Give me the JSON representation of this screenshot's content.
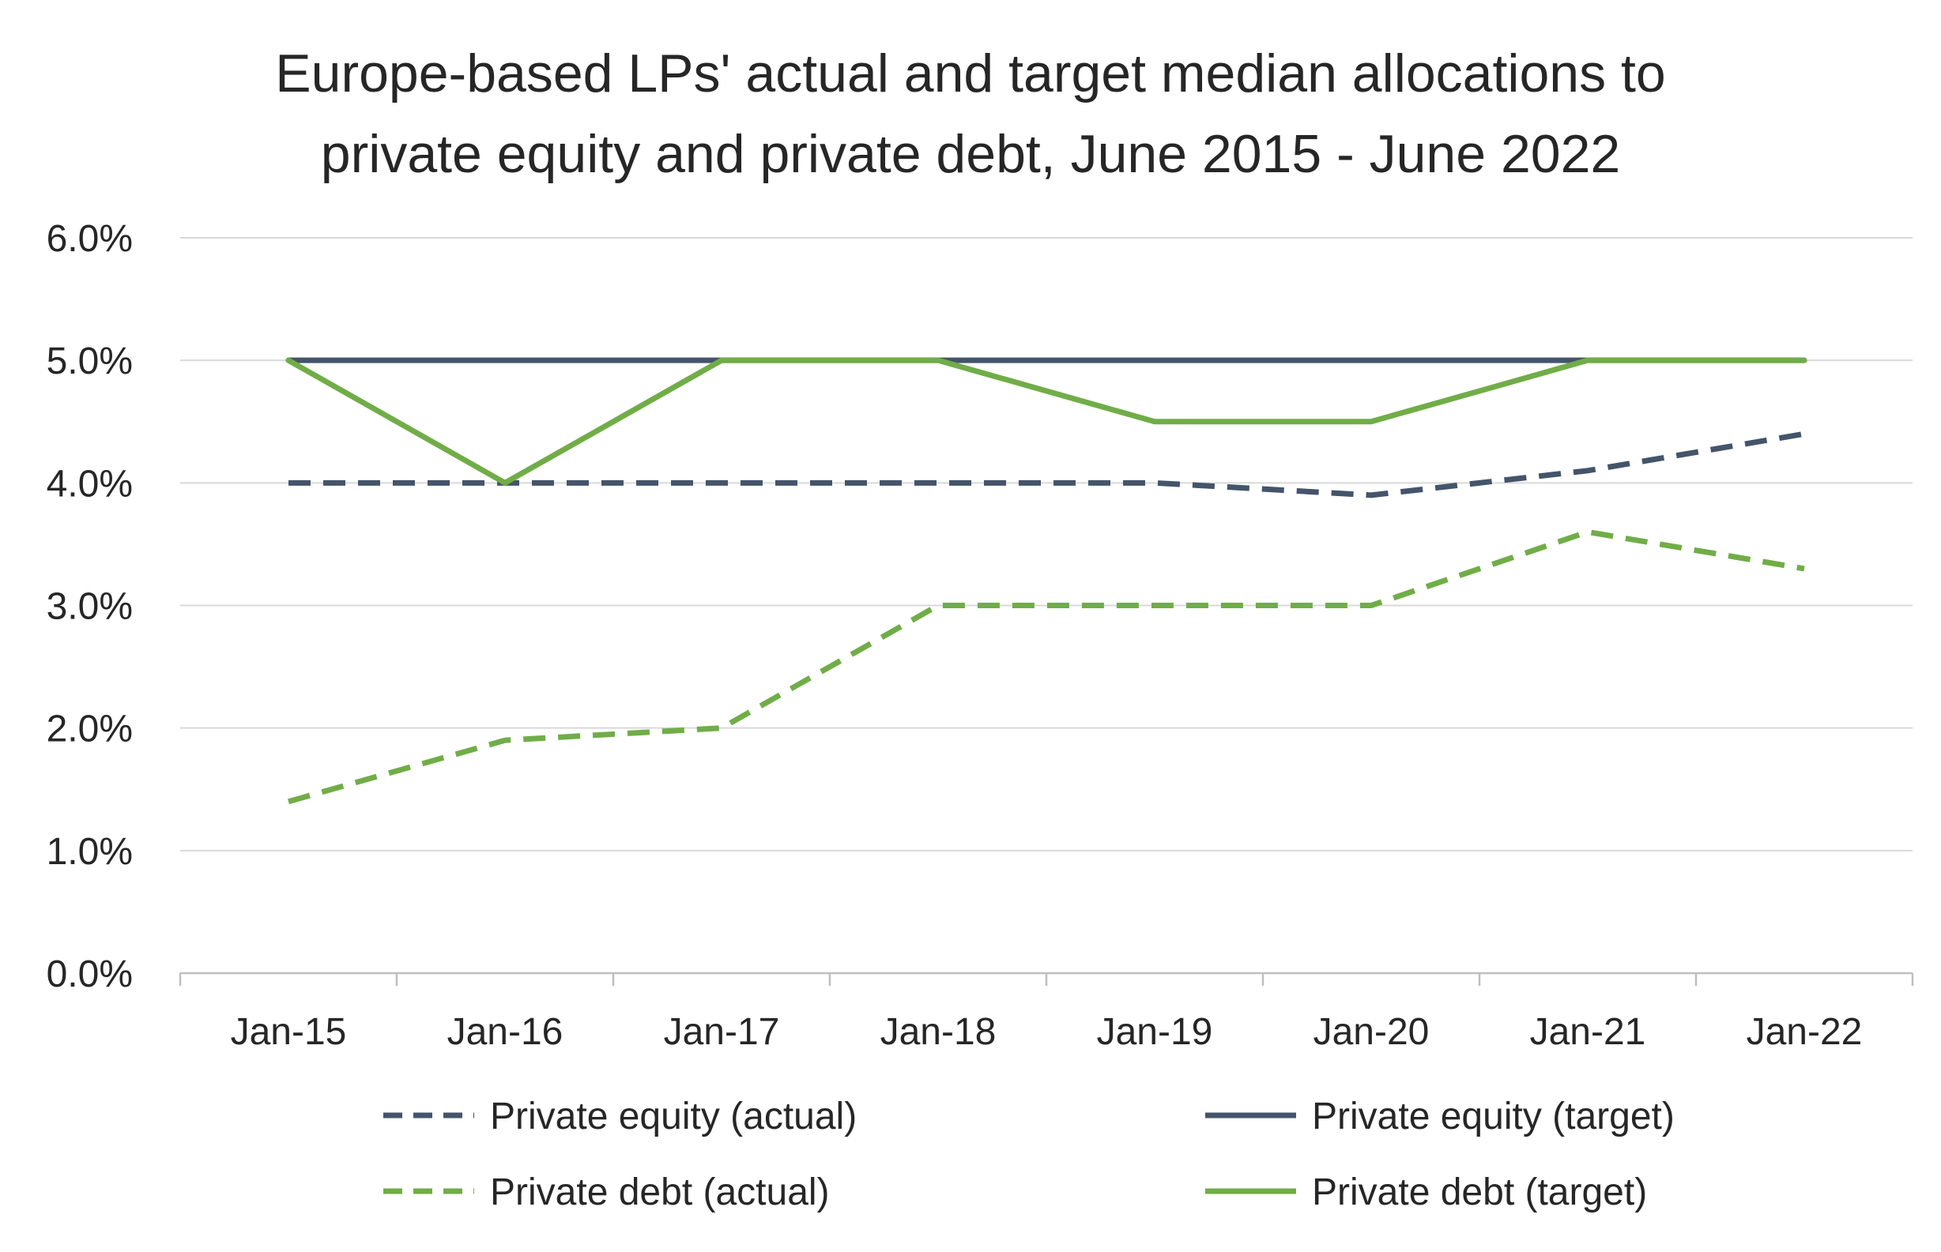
{
  "chart_data": {
    "type": "line",
    "title_lines": [
      "Europe-based LPs' actual and target median allocations to",
      "private equity and private debt, June 2015 - June 2022"
    ],
    "categories": [
      "Jan-15",
      "Jan-16",
      "Jan-17",
      "Jan-18",
      "Jan-19",
      "Jan-20",
      "Jan-21",
      "Jan-22"
    ],
    "ylim": [
      0,
      6
    ],
    "yticks": [
      "0.0%",
      "1.0%",
      "2.0%",
      "3.0%",
      "4.0%",
      "5.0%",
      "6.0%"
    ],
    "grid": true,
    "legend_position": "bottom",
    "series": [
      {
        "name": "Private equity (actual)",
        "style": "dashed",
        "color": "#44546a",
        "values": [
          4.0,
          4.0,
          4.0,
          4.0,
          4.0,
          3.9,
          4.1,
          4.4
        ]
      },
      {
        "name": "Private equity (target)",
        "style": "solid",
        "color": "#44546a",
        "values": [
          5.0,
          5.0,
          5.0,
          5.0,
          5.0,
          5.0,
          5.0,
          5.0
        ]
      },
      {
        "name": "Private debt (actual)",
        "style": "dashed",
        "color": "#70ad47",
        "values": [
          1.4,
          1.9,
          2.0,
          3.0,
          3.0,
          3.0,
          3.6,
          3.3
        ]
      },
      {
        "name": "Private debt (target)",
        "style": "solid",
        "color": "#70ad47",
        "values": [
          5.0,
          4.0,
          5.0,
          5.0,
          4.5,
          4.5,
          5.0,
          5.0
        ]
      }
    ]
  }
}
